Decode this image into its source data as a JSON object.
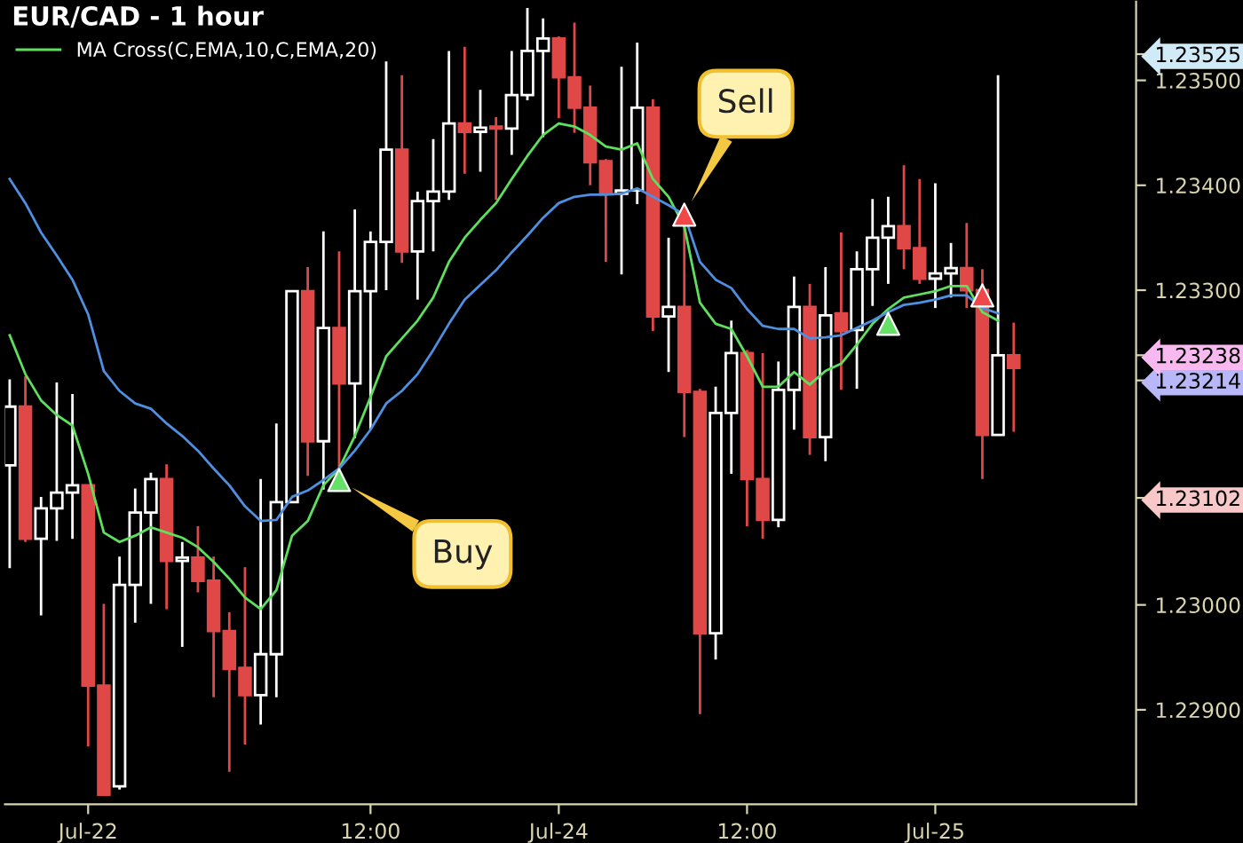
{
  "chart_data": {
    "type": "candlestick",
    "title": "EUR/CAD - 1 hour",
    "categories": [
      null,
      null,
      null,
      null,
      null,
      "Jul-22",
      null,
      null,
      null,
      null,
      null,
      null,
      null,
      null,
      null,
      null,
      null,
      null,
      null,
      null,
      null,
      null,
      null,
      "12:00",
      null,
      null,
      null,
      null,
      null,
      null,
      null,
      null,
      null,
      null,
      null,
      "Jul-24",
      null,
      null,
      null,
      null,
      null,
      null,
      null,
      null,
      null,
      null,
      null,
      "12:00",
      null,
      null,
      null,
      null,
      null,
      null,
      null,
      null,
      null,
      null,
      null,
      "Jul-25",
      null,
      null,
      null,
      null,
      null
    ],
    "colors": [
      "#ffffff",
      "#e04848",
      "#ffffff",
      "#ffffff",
      "#ffffff",
      "#e04848",
      "#e04848",
      "#ffffff",
      "#ffffff",
      "#ffffff",
      "#e04848",
      "#ffffff",
      "#e04848",
      "#e04848",
      "#e04848",
      "#e04848",
      "#ffffff",
      "#ffffff",
      "#ffffff",
      "#e04848",
      "#ffffff",
      "#e04848",
      "#ffffff",
      "#ffffff",
      "#ffffff",
      "#e04848",
      "#ffffff",
      "#ffffff",
      "#ffffff",
      "#e04848",
      "#ffffff",
      "#e04848",
      "#ffffff",
      "#ffffff",
      "#ffffff",
      "#e04848",
      "#e04848",
      "#e04848",
      "#e04848",
      "#ffffff",
      "#ffffff",
      "#e04848",
      "#ffffff",
      "#e04848",
      "#e04848",
      "#ffffff",
      "#ffffff",
      "#e04848",
      "#e04848",
      "#ffffff",
      "#ffffff",
      "#e04848",
      "#ffffff",
      "#e04848",
      "#ffffff",
      "#ffffff",
      "#ffffff",
      "#e04848",
      "#e04848",
      "#ffffff",
      "#ffffff",
      "#e04848",
      "#e04848",
      "#ffffff",
      "#e04848"
    ],
    "ohlc": [
      [
        1.23133,
        1.23215,
        1.23035,
        1.23189
      ],
      [
        1.23189,
        1.23218,
        1.2306,
        1.23063
      ],
      [
        1.23063,
        1.23103,
        1.2299,
        1.23092
      ],
      [
        1.23092,
        1.23212,
        1.23061,
        1.23107
      ],
      [
        1.23107,
        1.23201,
        1.23063,
        1.23114
      ],
      [
        1.23114,
        1.23114,
        1.22865,
        1.22923
      ],
      [
        1.22923,
        1.23001,
        1.22819,
        1.22819
      ],
      [
        1.22827,
        1.23046,
        1.22824,
        1.23019
      ],
      [
        1.23019,
        1.23111,
        1.22983,
        1.23088
      ],
      [
        1.23088,
        1.23126,
        1.23001,
        1.2312
      ],
      [
        1.2312,
        1.23134,
        1.22996,
        1.23042
      ],
      [
        1.23042,
        1.2306,
        1.2296,
        1.23045
      ],
      [
        1.23045,
        1.23075,
        1.23012,
        1.23023
      ],
      [
        1.23023,
        1.23046,
        1.22912,
        1.22975
      ],
      [
        1.22975,
        1.22993,
        1.22841,
        1.22939
      ],
      [
        1.2294,
        1.23036,
        1.22867,
        1.22914
      ],
      [
        1.22914,
        1.2312,
        1.22886,
        1.22953
      ],
      [
        1.22953,
        1.23173,
        1.22912,
        1.23098
      ],
      [
        1.23098,
        1.23299,
        1.23098,
        1.23299
      ],
      [
        1.23299,
        1.23322,
        1.23123,
        1.23156
      ],
      [
        1.23156,
        1.23356,
        1.2311,
        1.23264
      ],
      [
        1.23264,
        1.23337,
        1.23128,
        1.23211
      ],
      [
        1.23211,
        1.23377,
        1.23159,
        1.23299
      ],
      [
        1.23299,
        1.23356,
        1.23167,
        1.23346
      ],
      [
        1.23346,
        1.23518,
        1.233,
        1.23434
      ],
      [
        1.23434,
        1.23505,
        1.23326,
        1.23337
      ],
      [
        1.23337,
        1.23394,
        1.23291,
        1.23385
      ],
      [
        1.23385,
        1.23444,
        1.23337,
        1.23394
      ],
      [
        1.23394,
        1.23528,
        1.23386,
        1.23459
      ],
      [
        1.23459,
        1.23532,
        1.23411,
        1.23451
      ],
      [
        1.23451,
        1.23491,
        1.23413,
        1.23455
      ],
      [
        1.23456,
        1.23465,
        1.23386,
        1.23454
      ],
      [
        1.23454,
        1.23528,
        1.23429,
        1.23486
      ],
      [
        1.23486,
        1.23569,
        1.23481,
        1.23528
      ],
      [
        1.23528,
        1.23559,
        1.23446,
        1.2354
      ],
      [
        1.2354,
        1.23542,
        1.23464,
        1.23503
      ],
      [
        1.23503,
        1.23555,
        1.2345,
        1.23474
      ],
      [
        1.23474,
        1.23495,
        1.234,
        1.23422
      ],
      [
        1.23423,
        1.23425,
        1.23327,
        1.23392
      ],
      [
        1.23392,
        1.23513,
        1.23315,
        1.23395
      ],
      [
        1.23395,
        1.23536,
        1.23382,
        1.23474
      ],
      [
        1.23474,
        1.23482,
        1.23261,
        1.23275
      ],
      [
        1.23275,
        1.2335,
        1.23222,
        1.23284
      ],
      [
        1.23284,
        1.23371,
        1.2316,
        1.23203
      ],
      [
        1.23203,
        1.23206,
        1.22896,
        1.22973
      ],
      [
        1.22973,
        1.23208,
        1.22948,
        1.23183
      ],
      [
        1.23183,
        1.23271,
        1.23125,
        1.2324
      ],
      [
        1.2324,
        1.23243,
        1.23075,
        1.2312
      ],
      [
        1.2312,
        1.2324,
        1.23063,
        1.23081
      ],
      [
        1.23081,
        1.23232,
        1.23074,
        1.23205
      ],
      [
        1.23205,
        1.23313,
        1.23167,
        1.23284
      ],
      [
        1.23284,
        1.23306,
        1.23143,
        1.2316
      ],
      [
        1.2316,
        1.23322,
        1.23137,
        1.23276
      ],
      [
        1.23278,
        1.23355,
        1.23205,
        1.23261
      ],
      [
        1.23262,
        1.23337,
        1.23206,
        1.2332
      ],
      [
        1.2332,
        1.23387,
        1.23285,
        1.2335
      ],
      [
        1.2335,
        1.23389,
        1.23306,
        1.23361
      ],
      [
        1.23361,
        1.23419,
        1.2332,
        1.2334
      ],
      [
        1.2334,
        1.23406,
        1.23306,
        1.23311
      ],
      [
        1.23311,
        1.23402,
        1.23283,
        1.23316
      ],
      [
        1.23316,
        1.23345,
        1.23293,
        1.23321
      ],
      [
        1.23321,
        1.23364,
        1.23283,
        1.233
      ],
      [
        1.233,
        1.2332,
        1.2312,
        1.23162
      ],
      [
        1.23162,
        1.23505,
        1.23162,
        1.23238
      ],
      [
        1.23238,
        1.23269,
        1.23165,
        1.23226
      ]
    ],
    "series": [
      {
        "name": "MA Cross(C,EMA,10,C,EMA,20)",
        "type": "line",
        "color": "#5ee05e",
        "values": [
          1.23257,
          1.2322,
          1.23195,
          1.23181,
          1.23171,
          1.23125,
          1.23069,
          1.2306,
          1.23066,
          1.23074,
          1.23069,
          1.23064,
          1.23055,
          1.23041,
          1.23025,
          1.23007,
          1.22996,
          1.23014,
          1.23066,
          1.2308,
          1.23114,
          1.2313,
          1.23161,
          1.23198,
          1.23237,
          1.23254,
          1.23271,
          1.23293,
          1.23327,
          1.2335,
          1.23367,
          1.23383,
          1.23406,
          1.23428,
          1.23448,
          1.23459,
          1.23456,
          1.23448,
          1.23437,
          1.23434,
          1.2344,
          1.23406,
          1.23389,
          1.23361,
          1.23288,
          1.23268,
          1.23263,
          1.23237,
          1.23208,
          1.23208,
          1.23222,
          1.2321,
          1.23223,
          1.2323,
          1.23248,
          1.23268,
          1.23282,
          1.23293,
          1.23296,
          1.23299,
          1.23304,
          1.23304,
          1.23279,
          1.23271,
          null
        ]
      },
      {
        "type": "line",
        "color": "#4f8fe0",
        "values": [
          1.23406,
          1.23383,
          1.23355,
          1.23333,
          1.2331,
          1.23277,
          1.23223,
          1.23204,
          1.23192,
          1.23187,
          1.23173,
          1.23161,
          1.23147,
          1.2313,
          1.23114,
          1.23094,
          1.2308,
          1.23081,
          1.23103,
          1.23109,
          1.23119,
          1.2313,
          1.23147,
          1.23167,
          1.23192,
          1.23204,
          1.2322,
          1.23243,
          1.23268,
          1.23291,
          1.23305,
          1.23319,
          1.23336,
          1.23352,
          1.23369,
          1.23383,
          1.23389,
          1.23391,
          1.23391,
          1.23392,
          1.23397,
          1.23389,
          1.23381,
          1.23372,
          1.23327,
          1.2331,
          1.23302,
          1.23282,
          1.23266,
          1.23263,
          1.23263,
          1.23254,
          1.23255,
          1.23257,
          1.23264,
          1.23271,
          1.23279,
          1.23286,
          1.23288,
          1.23291,
          1.23295,
          1.23295,
          1.23283,
          1.23278,
          null
        ]
      },
      {
        "type": "scatter",
        "color": "#66e066",
        "marker": "triangle",
        "values": [
          null,
          null,
          null,
          null,
          null,
          null,
          null,
          null,
          null,
          null,
          null,
          null,
          null,
          null,
          null,
          null,
          null,
          null,
          null,
          null,
          null,
          1.23119,
          null,
          null,
          null,
          null,
          null,
          null,
          null,
          null,
          null,
          null,
          null,
          null,
          null,
          null,
          null,
          null,
          null,
          null,
          null,
          null,
          null,
          null,
          null,
          null,
          null,
          null,
          null,
          null,
          null,
          null,
          null,
          null,
          null,
          null,
          1.23268,
          null,
          null,
          null,
          null,
          null,
          null,
          null,
          null
        ]
      },
      {
        "type": "scatter",
        "color": "#f04848",
        "marker": "triangle",
        "values": [
          null,
          null,
          null,
          null,
          null,
          null,
          null,
          null,
          null,
          null,
          null,
          null,
          null,
          null,
          null,
          null,
          null,
          null,
          null,
          null,
          null,
          null,
          null,
          null,
          null,
          null,
          null,
          null,
          null,
          null,
          null,
          null,
          null,
          null,
          null,
          null,
          null,
          null,
          null,
          null,
          null,
          null,
          null,
          1.23372,
          null,
          null,
          null,
          null,
          null,
          null,
          null,
          null,
          null,
          null,
          null,
          null,
          null,
          null,
          null,
          null,
          null,
          null,
          1.23295,
          null,
          null
        ]
      }
    ],
    "ylim": [
      1.2281,
      1.23575
    ],
    "yticks": [
      {
        "value": 1.229,
        "label": "1.22900"
      },
      {
        "value": 1.23,
        "label": "1.23000"
      },
      {
        "value": 1.23102,
        "label": "1.23102"
      },
      {
        "value": 1.23214,
        "label": "1.23214"
      },
      {
        "value": 1.23238,
        "label": "1.23238"
      },
      {
        "value": 1.233,
        "label": "1.23300"
      },
      {
        "value": 1.234,
        "label": "1.23400"
      },
      {
        "value": 1.235,
        "label": "1.23500"
      },
      {
        "value": 1.23525,
        "label": "1.23525"
      }
    ],
    "legend": "top left",
    "annotations": [
      "Buy",
      "Sell"
    ]
  }
}
